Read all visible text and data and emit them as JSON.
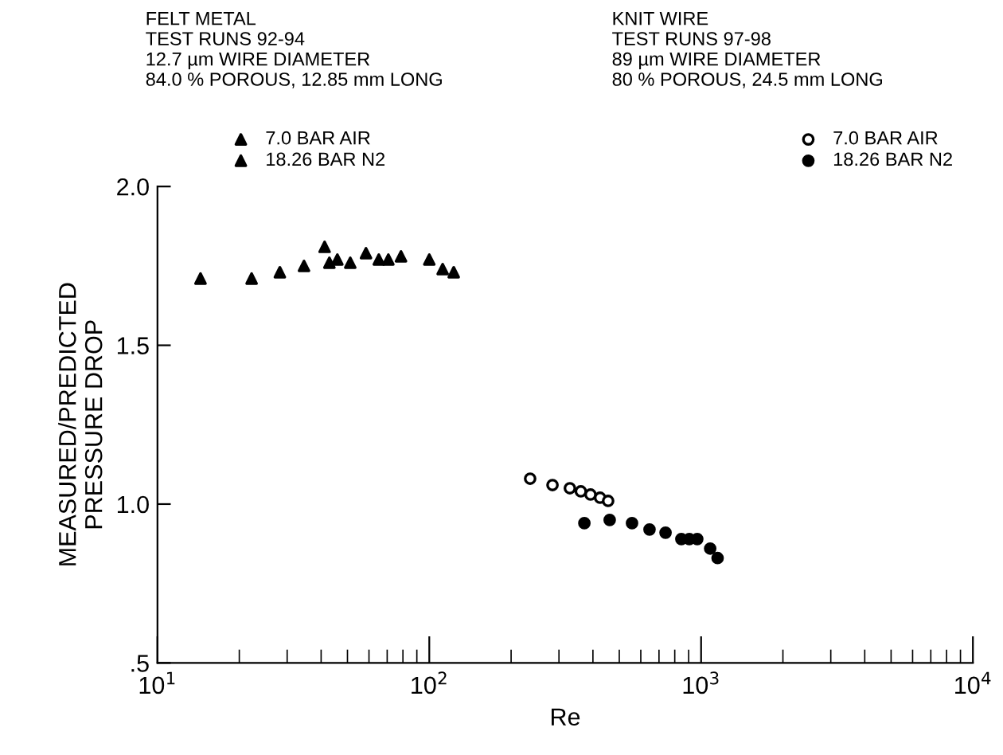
{
  "chart_data": {
    "type": "scatter",
    "xlabel": "Re",
    "ylabel": "MEASURED/PREDICTED\nPRESSURE DROP",
    "annotations": [
      "FELT METAL\nTEST RUNS 92-94\n12.7 µm WIRE DIAMETER\n84.0 % POROUS, 12.85 mm LONG",
      "KNIT WIRE\nTEST RUNS 97-98\n89 µm WIRE DIAMETER\n80 % POROUS, 24.5 mm LONG"
    ],
    "log": "x",
    "xlim": [
      10,
      10000
    ],
    "ylim": [
      0.5,
      2.0
    ],
    "xticks": [
      {
        "value": 10,
        "label": "10$^{1}$"
      },
      {
        "value": 100,
        "label": "10$^{2}$"
      },
      {
        "value": 1000,
        "label": "10$^{3}$"
      },
      {
        "value": 10000,
        "label": "10$^{4}$"
      }
    ],
    "yticks": [
      {
        "value": 0.5,
        "label": ".5"
      },
      {
        "value": 1.0,
        "label": "1.0"
      },
      {
        "value": 1.5,
        "label": "1.5"
      },
      {
        "value": 2.0,
        "label": "2.0"
      }
    ],
    "grid": false,
    "legend": "top",
    "series": [
      {
        "name": "7.0 BAR AIR",
        "color": "#000000",
        "marker": "triangle",
        "x": [
          22.2,
          41.2,
          45.9,
          58.5,
          70.7,
          100,
          123
        ],
        "values": [
          1.71,
          1.81,
          1.77,
          1.79,
          1.77,
          1.77,
          1.73
        ]
      },
      {
        "name": "18.26 BAR N2",
        "color": "#000000",
        "marker": "triangle",
        "x": [
          14.4,
          28.2,
          34.6,
          42.9,
          51.2,
          65.2,
          78.7,
          112
        ],
        "values": [
          1.71,
          1.73,
          1.75,
          1.76,
          1.76,
          1.77,
          1.78,
          1.74
        ]
      },
      {
        "name": "7.0 BAR AIR",
        "color": "#ffffff",
        "marker": "circle",
        "x": [
          235,
          284,
          329,
          361,
          392,
          425,
          455
        ],
        "values": [
          1.08,
          1.06,
          1.05,
          1.04,
          1.03,
          1.02,
          1.01
        ]
      },
      {
        "name": "18.26 BAR N2",
        "color": "#000000",
        "marker": "circle",
        "x": [
          372,
          461,
          557,
          646,
          740,
          846,
          905,
          968,
          1080,
          1150
        ],
        "values": [
          0.94,
          0.95,
          0.94,
          0.92,
          0.91,
          0.89,
          0.89,
          0.89,
          0.86,
          0.83
        ]
      }
    ]
  }
}
